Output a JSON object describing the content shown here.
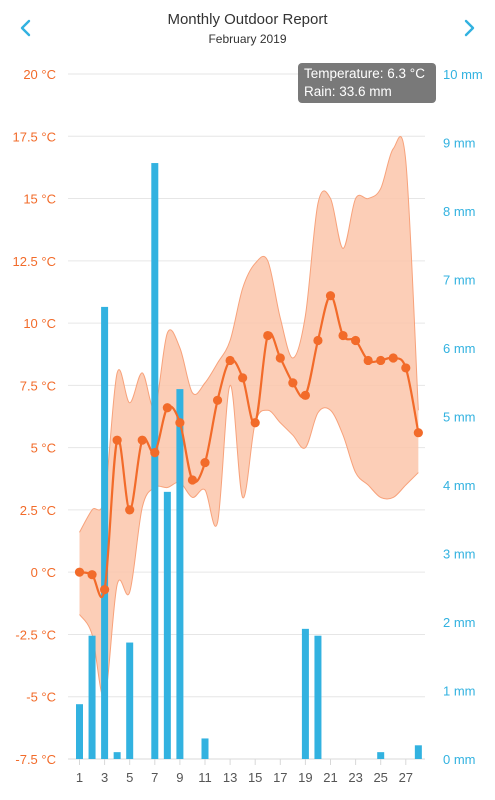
{
  "header": {
    "title": "Monthly Outdoor Report",
    "subtitle": "February 2019"
  },
  "colors": {
    "temperature": "#f26b2a",
    "range_fill": "#fbc6aa",
    "rain": "#32b2e0",
    "grid": "#e6e6e6"
  },
  "tooltip": {
    "temperature": "Temperature: 6.3 °C",
    "rain": "Rain: 33.6 mm"
  },
  "chart_data": {
    "type": "line",
    "x": [
      1,
      2,
      3,
      4,
      5,
      6,
      7,
      8,
      9,
      10,
      11,
      12,
      13,
      14,
      15,
      16,
      17,
      18,
      19,
      20,
      21,
      22,
      23,
      24,
      25,
      26,
      27,
      28
    ],
    "x_ticks": [
      "1",
      "3",
      "5",
      "7",
      "9",
      "11",
      "13",
      "15",
      "17",
      "19",
      "21",
      "23",
      "25",
      "27"
    ],
    "series": [
      {
        "kind": "line",
        "values": [
          0.0,
          -0.1,
          -0.7,
          5.3,
          2.5,
          5.3,
          4.8,
          6.6,
          6.0,
          3.7,
          4.4,
          6.9,
          8.5,
          7.8,
          6.0,
          9.5,
          8.6,
          7.6,
          7.1,
          9.3,
          11.1,
          9.5,
          9.3,
          8.5,
          8.5,
          8.6,
          8.2,
          5.6
        ]
      },
      {
        "kind": "range",
        "low": [
          -1.7,
          -2.5,
          -5.0,
          -0.5,
          -0.8,
          2.6,
          3.4,
          3.4,
          3.6,
          3.0,
          3.3,
          2.0,
          7.5,
          3.0,
          6.0,
          6.5,
          6.0,
          5.5,
          5.0,
          6.4,
          6.5,
          5.5,
          4.0,
          3.5,
          3.0,
          3.0,
          3.5,
          4.0
        ],
        "high": [
          1.6,
          2.5,
          3.0,
          8.0,
          6.8,
          8.0,
          6.6,
          9.6,
          9.0,
          7.2,
          7.6,
          8.4,
          9.3,
          11.4,
          12.4,
          12.5,
          10.2,
          8.6,
          10.3,
          14.8,
          15.0,
          13.0,
          15.0,
          15.0,
          15.4,
          17.0,
          16.5,
          6.5
        ]
      },
      {
        "kind": "bar",
        "values": [
          0.8,
          1.8,
          6.6,
          0.1,
          1.7,
          null,
          8.7,
          3.9,
          5.4,
          null,
          0.3,
          null,
          null,
          null,
          null,
          null,
          null,
          null,
          1.9,
          1.8,
          null,
          null,
          null,
          null,
          0.1,
          null,
          null,
          0.2
        ]
      }
    ],
    "y_left": {
      "ticks": [
        "20 °C",
        "17.5 °C",
        "15 °C",
        "12.5 °C",
        "10 °C",
        "7.5 °C",
        "5 °C",
        "2.5 °C",
        "0 °C",
        "-2.5 °C",
        "-5 °C",
        "-7.5 °C"
      ],
      "range": [
        -7.5,
        20
      ]
    },
    "y_right": {
      "ticks": [
        "10 mm",
        "9 mm",
        "8 mm",
        "7 mm",
        "6 mm",
        "5 mm",
        "4 mm",
        "3 mm",
        "2 mm",
        "1 mm",
        "0 mm"
      ],
      "range": [
        0,
        10
      ]
    },
    "grid": true,
    "legend": "none"
  }
}
